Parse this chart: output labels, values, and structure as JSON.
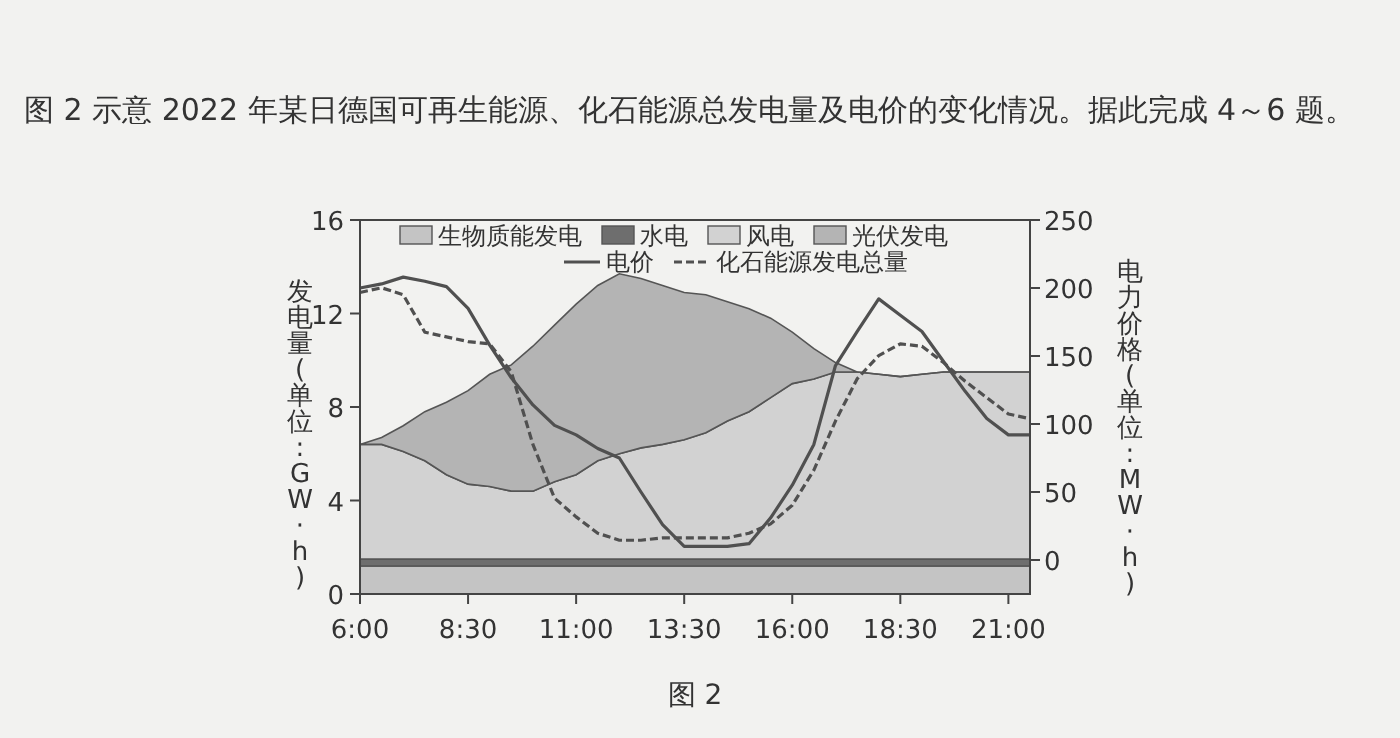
{
  "chart_data": {
    "type": "area",
    "stacked": true,
    "annotations": [
      "图 2 示意 2022 年某日德国可再生能源、化石能源总发电量及电价的变化情况。据此完成 4～6 题。",
      "图 2"
    ],
    "xlabel": null,
    "ylabel": "发电量(单位:GW·h)",
    "y2label": "电力价格(单位:MW·h)",
    "x": [
      6,
      6.5,
      7,
      7.5,
      8,
      8.5,
      9,
      9.5,
      10,
      10.5,
      11,
      11.5,
      12,
      12.5,
      13,
      13.5,
      14,
      14.5,
      15,
      15.5,
      16,
      16.5,
      17,
      17.5,
      18,
      18.5,
      19,
      19.5,
      20,
      20.5,
      21,
      21.5
    ],
    "xlim": [
      6,
      21.5
    ],
    "xticks": [
      {
        "value": 6,
        "label": "6:00"
      },
      {
        "value": 8.5,
        "label": "8:30"
      },
      {
        "value": 11,
        "label": "11:00"
      },
      {
        "value": 13.5,
        "label": "13:30"
      },
      {
        "value": 16,
        "label": "16:00"
      },
      {
        "value": 18.5,
        "label": "18:30"
      },
      {
        "value": 21,
        "label": "21:00"
      }
    ],
    "ylim": [
      0,
      16
    ],
    "yticks": [
      0,
      4,
      8,
      12,
      16
    ],
    "y2lim": [
      -25,
      250
    ],
    "y2ticks": [
      0,
      50,
      100,
      150,
      200,
      250
    ],
    "legend": "top",
    "grid": false,
    "series": [
      {
        "name": "生物质能发电",
        "color": "#c4c4c4",
        "values": [
          1.2,
          1.2,
          1.2,
          1.2,
          1.2,
          1.2,
          1.2,
          1.2,
          1.2,
          1.2,
          1.2,
          1.2,
          1.2,
          1.2,
          1.2,
          1.2,
          1.2,
          1.2,
          1.2,
          1.2,
          1.2,
          1.2,
          1.2,
          1.2,
          1.2,
          1.2,
          1.2,
          1.2,
          1.2,
          1.2,
          1.2,
          1.2
        ]
      },
      {
        "name": "水电",
        "color": "#6e6e6e",
        "values": [
          0.3,
          0.3,
          0.3,
          0.3,
          0.3,
          0.3,
          0.3,
          0.3,
          0.3,
          0.3,
          0.3,
          0.3,
          0.3,
          0.3,
          0.3,
          0.3,
          0.3,
          0.3,
          0.3,
          0.3,
          0.3,
          0.3,
          0.3,
          0.3,
          0.3,
          0.3,
          0.3,
          0.3,
          0.3,
          0.3,
          0.3,
          0.3
        ]
      },
      {
        "name": "风电",
        "color": "#d2d2d2",
        "values": [
          4.9,
          4.9,
          4.6,
          4.2,
          3.6,
          3.2,
          3.1,
          2.9,
          2.9,
          3.3,
          3.6,
          4.2,
          4.5,
          4.75,
          4.9,
          5.1,
          5.4,
          5.9,
          6.3,
          6.9,
          7.5,
          7.7,
          8.0,
          8.0,
          7.9,
          7.8,
          7.9,
          8.0,
          8.0,
          8.0,
          8.0,
          8.0
        ]
      },
      {
        "name": "光伏发电",
        "color": "#b4b4b4",
        "values": [
          0,
          0.3,
          1.1,
          2.1,
          3.1,
          4.0,
          4.8,
          5.4,
          6.2,
          6.7,
          7.3,
          7.5,
          7.7,
          7.25,
          6.8,
          6.3,
          5.9,
          5.1,
          4.4,
          3.4,
          2.2,
          1.3,
          0.4,
          0,
          0,
          0,
          0,
          0,
          0,
          0,
          0,
          0
        ]
      },
      {
        "name": "电价",
        "type": "line",
        "axis": "y2",
        "line_style": "solid",
        "color": "#505050",
        "values": [
          200,
          203,
          208,
          205,
          201,
          185,
          158,
          134,
          114,
          99,
          92,
          82,
          75,
          50,
          26,
          10,
          10,
          10,
          12,
          31,
          55,
          85,
          143,
          168,
          192,
          180,
          168,
          146,
          124,
          104,
          92,
          92
        ]
      },
      {
        "name": "化石能源发电总量",
        "type": "line",
        "line_style": "dashed",
        "color": "#505050",
        "values": [
          12.9,
          13.1,
          12.8,
          11.2,
          11.0,
          10.8,
          10.7,
          9.5,
          6.4,
          4.1,
          3.3,
          2.6,
          2.3,
          2.3,
          2.4,
          2.4,
          2.4,
          2.4,
          2.6,
          3.0,
          3.8,
          5.3,
          7.4,
          9.2,
          10.2,
          10.7,
          10.6,
          9.9,
          9.1,
          8.4,
          7.7,
          7.5
        ]
      }
    ]
  }
}
